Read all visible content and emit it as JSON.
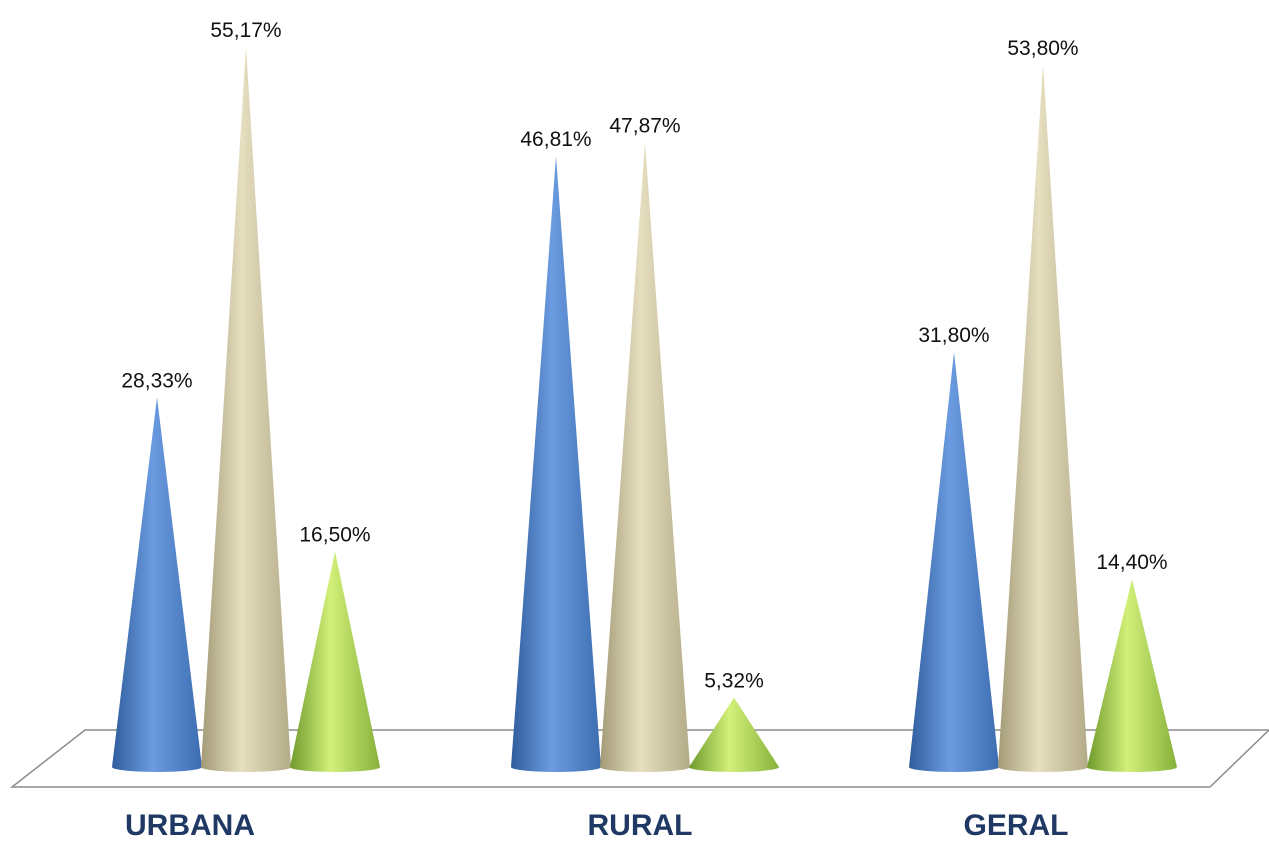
{
  "chart_data": {
    "type": "bar",
    "shape": "cone",
    "title": "",
    "xlabel": "",
    "ylabel": "",
    "categories": [
      "URBANA",
      "RURAL",
      "GERAL"
    ],
    "series": [
      {
        "values": [
          28.33,
          46.81,
          31.8
        ],
        "labels": [
          "28,33%",
          "46,81%",
          "31,80%"
        ],
        "color": "#4f81bd"
      },
      {
        "values": [
          55.17,
          47.87,
          53.8
        ],
        "labels": [
          "55,17%",
          "47,87%",
          "53,80%"
        ],
        "color": "#c4bd97"
      },
      {
        "values": [
          16.5,
          5.32,
          14.4
        ],
        "labels": [
          "16,50%",
          "5,32%",
          "14,40%"
        ],
        "color": "#9bbb59"
      }
    ],
    "ylim": [
      0,
      100
    ],
    "grid": false,
    "legend": "none"
  }
}
